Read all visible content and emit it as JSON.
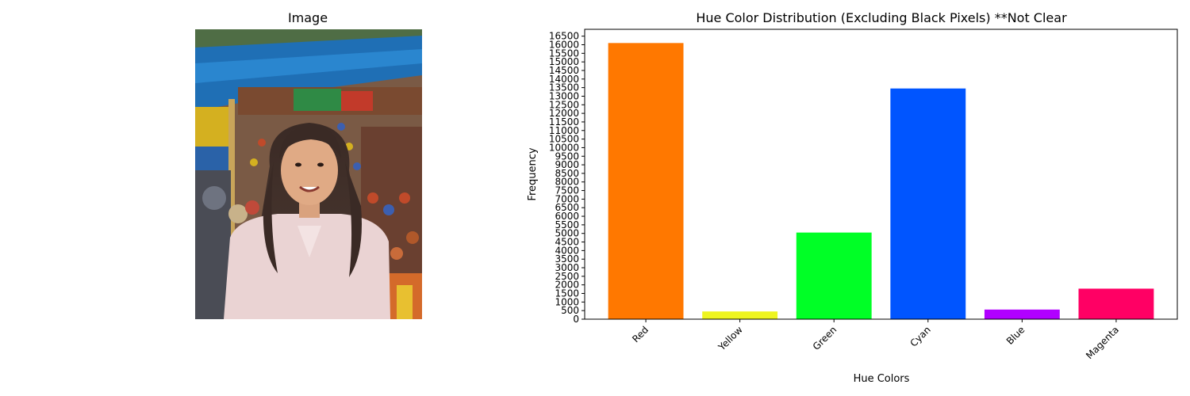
{
  "left_panel": {
    "title": "Image"
  },
  "chart_data": {
    "type": "bar",
    "title": "Hue Color Distribution (Excluding Black Pixels) **Not Clear",
    "xlabel": "Hue Colors",
    "ylabel": "Frequency",
    "categories": [
      "Red",
      "Yellow",
      "Green",
      "Cyan",
      "Blue",
      "Magenta"
    ],
    "values": [
      16100,
      450,
      5050,
      13450,
      560,
      1780
    ],
    "colors": [
      "#ff7800",
      "#eef520",
      "#00ff26",
      "#0055ff",
      "#b100ff",
      "#ff0064"
    ],
    "ylim": [
      0,
      16900
    ],
    "yticks": [
      0,
      500,
      1000,
      1500,
      2000,
      2500,
      3000,
      3500,
      4000,
      4500,
      5000,
      5500,
      6000,
      6500,
      7000,
      7500,
      8000,
      8500,
      9000,
      9500,
      10000,
      10500,
      11000,
      11500,
      12000,
      12500,
      13000,
      13500,
      14000,
      14500,
      15000,
      15500,
      16000,
      16500
    ],
    "xtick_rotation": 45,
    "grid": false,
    "legend": "none"
  }
}
